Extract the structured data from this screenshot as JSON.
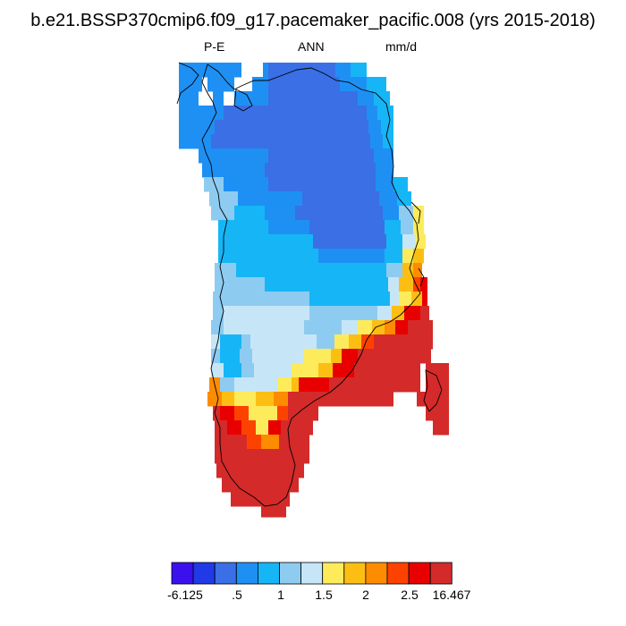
{
  "title": "b.e21.BSSP370cmip6.f09_g17.pacemaker_pacific.008 (yrs 2015-2018)",
  "variable": "P-E",
  "period": "ANN",
  "units": "mm/d",
  "colorbar": {
    "colors": [
      "#3a11ee",
      "#1f3ae6",
      "#3a6fe6",
      "#1e90f4",
      "#16b6f6",
      "#8ecbf1",
      "#c6e6f8",
      "#fdeb5c",
      "#fdbe14",
      "#fd8c00",
      "#fd4200",
      "#e80000",
      "#d42a2a"
    ],
    "labels": [
      "-6.125",
      ".5",
      "1",
      "1.5",
      "2",
      "2.5",
      "16.467"
    ]
  }
}
